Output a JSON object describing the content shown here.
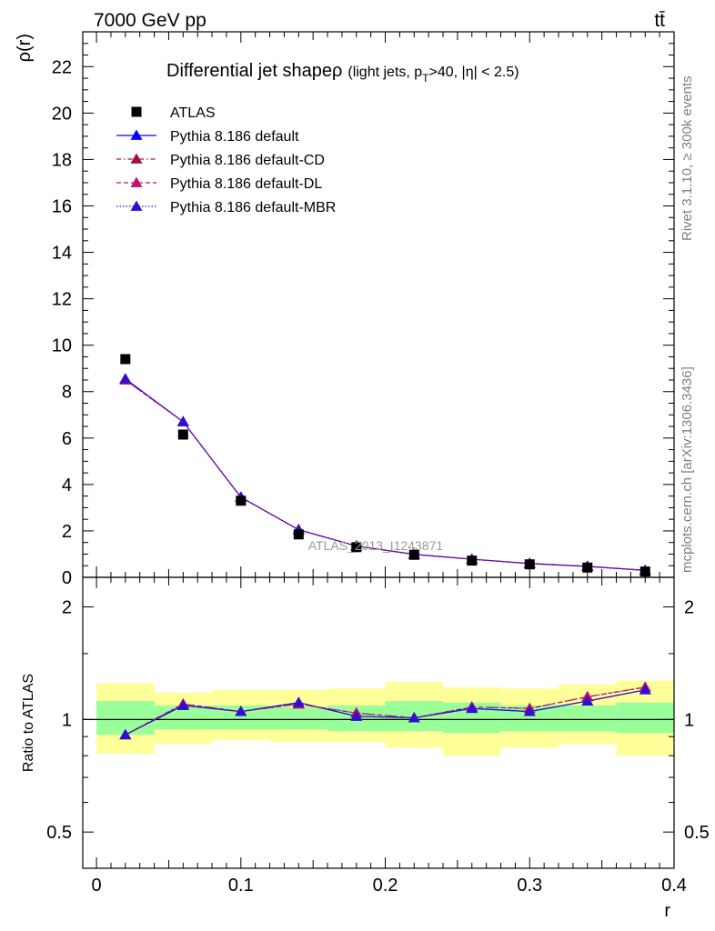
{
  "header": {
    "left": "7000 GeV pp",
    "right": "tt̄"
  },
  "side": {
    "rivet": "Rivet 3.1.10, ≥ 300k events",
    "mcplots": "mcplots.cern.ch [arXiv:1306.3436]"
  },
  "chart_data": {
    "type": "scatter",
    "title_main": "Differential jet shape",
    "title_symbol": "ρ",
    "title_sub_a": "(light jets, p",
    "title_sub_T": "T",
    "title_sub_b": ">40, |η| < 2.5)",
    "watermark": "ATLAS_2013_I1243871",
    "xlabel": "r",
    "ylabel_top": "ρ(r)",
    "ylabel_bottom": "Ratio to ATLAS",
    "xlim": [
      -0.0095,
      0.4
    ],
    "ylim_top": [
      0,
      23.5
    ],
    "ylim_ratio": [
      0.4,
      2.4
    ],
    "x_ticks": [
      0,
      0.1,
      0.2,
      0.3,
      0.4
    ],
    "x_tick_labels": [
      "0",
      "0.1",
      "0.2",
      "0.3",
      "0.4"
    ],
    "y_ticks_top": [
      0,
      2,
      4,
      6,
      8,
      10,
      12,
      14,
      16,
      18,
      20,
      22
    ],
    "y_tick_labels_top": [
      "0",
      "2",
      "4",
      "6",
      "8",
      "10",
      "12",
      "14",
      "16",
      "18",
      "20",
      "22"
    ],
    "y_ticks_ratio": [
      0.5,
      1,
      2
    ],
    "y_tick_labels_ratio": [
      "0.5",
      "1",
      "2"
    ],
    "bin_edges": [
      0,
      0.04,
      0.08,
      0.12,
      0.16,
      0.2,
      0.24,
      0.28,
      0.32,
      0.36,
      0.4
    ],
    "x": [
      0.02,
      0.06,
      0.1,
      0.14,
      0.18,
      0.22,
      0.26,
      0.3,
      0.34,
      0.38
    ],
    "data": {
      "name": "ATLAS",
      "values": [
        9.4,
        6.15,
        3.3,
        1.85,
        1.3,
        0.97,
        0.72,
        0.56,
        0.42,
        0.25
      ],
      "color": "#000000"
    },
    "series": [
      {
        "name": "Pythia 8.186 default",
        "color": "#0000ff",
        "dash": "",
        "values": [
          8.55,
          6.7,
          3.45,
          2.05,
          1.35,
          0.99,
          0.78,
          0.59,
          0.47,
          0.3
        ],
        "ratio": [
          0.91,
          1.09,
          1.05,
          1.11,
          1.02,
          1.01,
          1.07,
          1.05,
          1.12,
          1.2
        ]
      },
      {
        "name": "Pythia 8.186 default-CD",
        "color": "#a01046",
        "dash": "5,3,1.5,3",
        "values": [
          8.5,
          6.7,
          3.45,
          2.05,
          1.35,
          0.99,
          0.78,
          0.6,
          0.48,
          0.3
        ],
        "ratio": [
          0.91,
          1.1,
          1.05,
          1.1,
          1.04,
          1.01,
          1.08,
          1.07,
          1.15,
          1.22
        ]
      },
      {
        "name": "Pythia 8.186 default-DL",
        "color": "#c01070",
        "dash": "5,3",
        "values": [
          8.5,
          6.7,
          3.45,
          2.05,
          1.35,
          0.99,
          0.78,
          0.6,
          0.48,
          0.3
        ],
        "ratio": [
          0.91,
          1.1,
          1.05,
          1.1,
          1.04,
          1.01,
          1.08,
          1.07,
          1.15,
          1.22
        ]
      },
      {
        "name": "Pythia 8.186 default-MBR",
        "color": "#3010d0",
        "dash": "1.5,2",
        "values": [
          8.55,
          6.7,
          3.45,
          2.05,
          1.35,
          0.99,
          0.78,
          0.59,
          0.47,
          0.3
        ],
        "ratio": [
          0.91,
          1.09,
          1.05,
          1.11,
          1.02,
          1.01,
          1.07,
          1.05,
          1.12,
          1.2
        ]
      }
    ],
    "bands": {
      "inner_color": "#99ff99",
      "outer_color": "#ffff99",
      "inner_lo": [
        0.91,
        0.94,
        0.94,
        0.94,
        0.93,
        0.93,
        0.92,
        0.93,
        0.93,
        0.92
      ],
      "inner_hi": [
        1.12,
        1.09,
        1.09,
        1.08,
        1.09,
        1.12,
        1.11,
        1.09,
        1.09,
        1.11
      ],
      "outer_lo": [
        0.81,
        0.86,
        0.88,
        0.87,
        0.87,
        0.84,
        0.8,
        0.84,
        0.86,
        0.8
      ],
      "outer_hi": [
        1.25,
        1.18,
        1.2,
        1.2,
        1.21,
        1.26,
        1.22,
        1.21,
        1.24,
        1.27
      ]
    }
  }
}
